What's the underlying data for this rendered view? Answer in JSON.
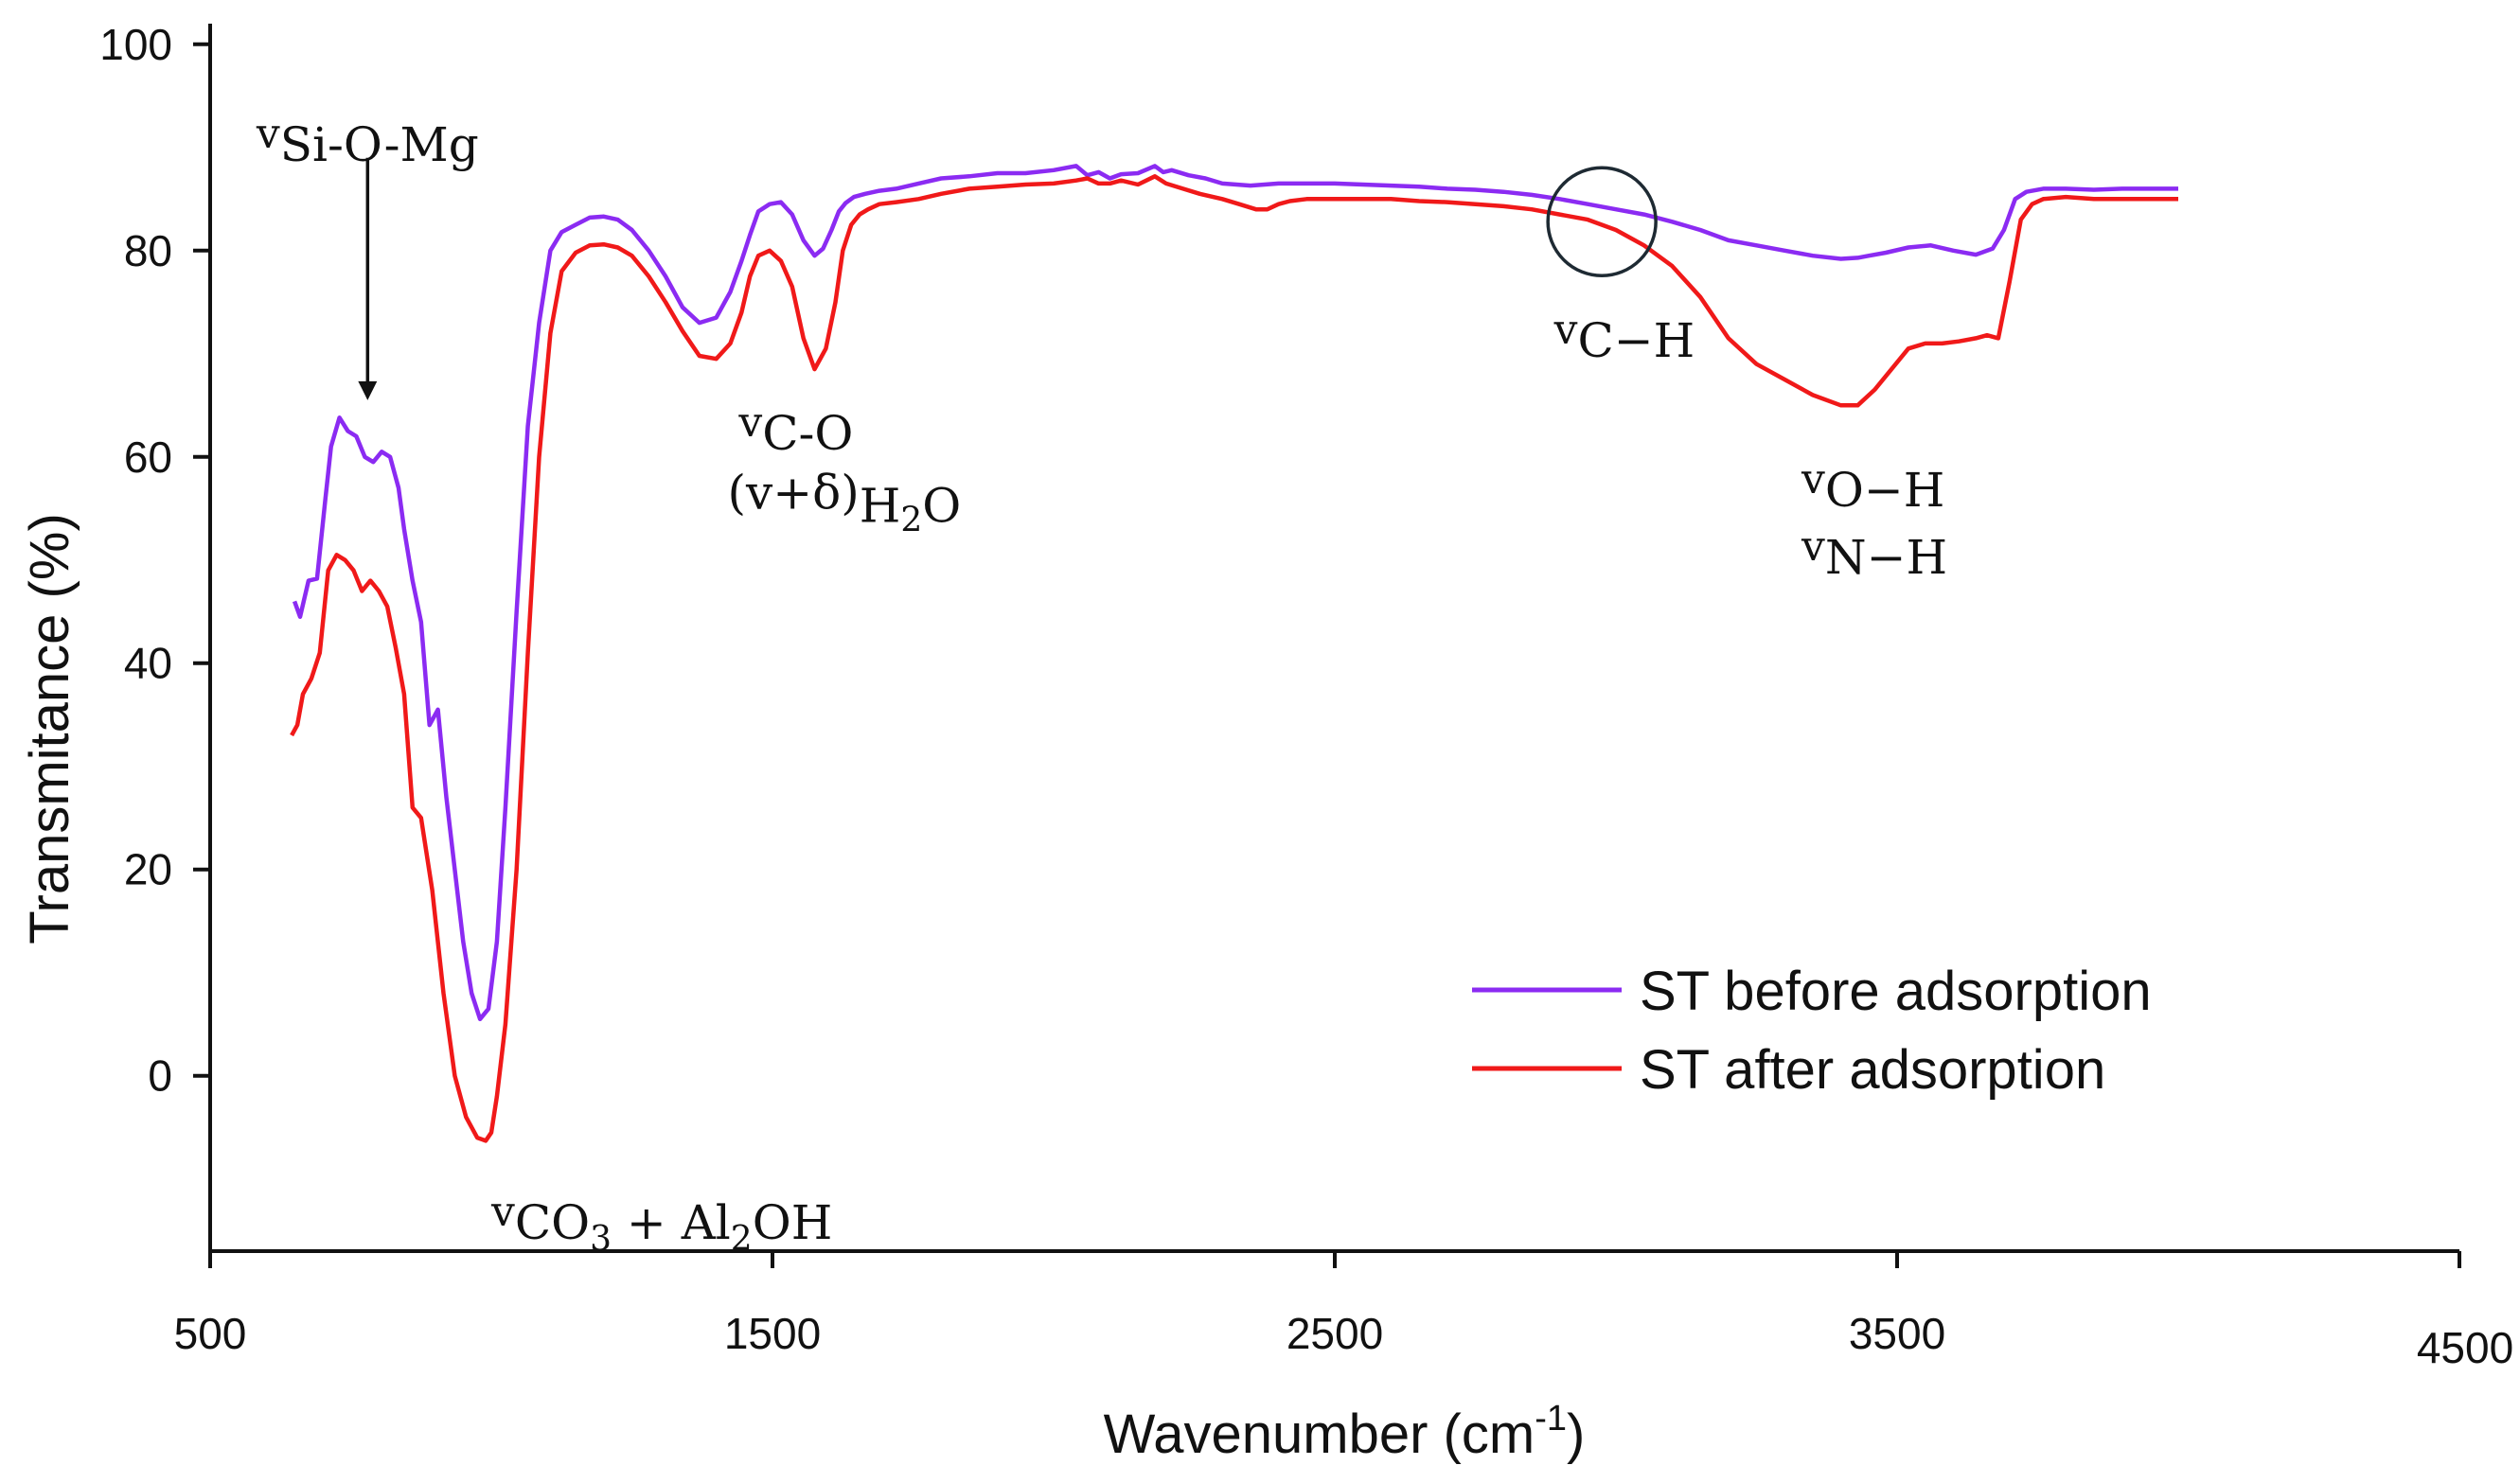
{
  "chart_data": {
    "type": "line",
    "xlabel": "Wavenumber (cm",
    "xlabel_sup": "-1",
    "xlabel_close": ")",
    "ylabel": "Transmitance (%)",
    "xlim": [
      500,
      4500
    ],
    "ylim": [
      -17,
      102
    ],
    "xticks": [
      "500",
      "1500",
      "2500",
      "3500",
      "4500"
    ],
    "xtick_values": [
      500,
      1500,
      2500,
      3500,
      4500
    ],
    "yticks": [
      "0",
      "20",
      "40",
      "60",
      "80",
      "100"
    ],
    "ytick_values": [
      0,
      20,
      40,
      60,
      80,
      100
    ],
    "legend_position": "lower-right",
    "series": [
      {
        "name": "ST before adsorption",
        "color": "#8b2bf2",
        "x": [
          650,
          660,
          675,
          690,
          705,
          715,
          730,
          745,
          760,
          775,
          790,
          805,
          820,
          835,
          845,
          860,
          875,
          890,
          905,
          920,
          935,
          950,
          965,
          980,
          995,
          1010,
          1025,
          1045,
          1065,
          1085,
          1105,
          1125,
          1150,
          1175,
          1200,
          1225,
          1250,
          1280,
          1310,
          1340,
          1370,
          1400,
          1425,
          1445,
          1460,
          1475,
          1495,
          1515,
          1535,
          1555,
          1575,
          1590,
          1605,
          1618,
          1630,
          1645,
          1665,
          1690,
          1720,
          1760,
          1800,
          1850,
          1900,
          1950,
          2000,
          2040,
          2060,
          2080,
          2100,
          2120,
          2150,
          2180,
          2195,
          2210,
          2240,
          2270,
          2300,
          2350,
          2400,
          2450,
          2500,
          2550,
          2600,
          2650,
          2700,
          2750,
          2800,
          2850,
          2900,
          2950,
          3000,
          3050,
          3100,
          3150,
          3200,
          3250,
          3300,
          3350,
          3400,
          3430,
          3450,
          3480,
          3520,
          3560,
          3600,
          3640,
          3670,
          3690,
          3710,
          3730,
          3760,
          3800,
          3850,
          3900,
          3950,
          4000
        ],
        "values": [
          46,
          44.5,
          48,
          48.2,
          56,
          61,
          63.8,
          62.5,
          62,
          60,
          59.5,
          60.5,
          60,
          57,
          53,
          48,
          44,
          34,
          35.5,
          27,
          20,
          13,
          8,
          5.5,
          6.5,
          13,
          26,
          45,
          63,
          73,
          80,
          81.8,
          82.5,
          83.2,
          83.3,
          83,
          82,
          80,
          77.5,
          74.5,
          73,
          73.5,
          76,
          79,
          81.5,
          83.8,
          84.5,
          84.7,
          83.5,
          81,
          79.5,
          80.2,
          82,
          83.8,
          84.6,
          85.2,
          85.5,
          85.8,
          86,
          86.5,
          87,
          87.2,
          87.5,
          87.5,
          87.8,
          88.2,
          87.3,
          87.6,
          87,
          87.4,
          87.5,
          88.2,
          87.6,
          87.8,
          87.3,
          87,
          86.5,
          86.3,
          86.5,
          86.5,
          86.5,
          86.4,
          86.3,
          86.2,
          86,
          85.9,
          85.7,
          85.4,
          85,
          84.5,
          84,
          83.5,
          82.8,
          82,
          81,
          80.5,
          80,
          79.5,
          79.2,
          79.3,
          79.5,
          79.8,
          80.3,
          80.5,
          80,
          79.6,
          80.2,
          82,
          85,
          85.7,
          86,
          86,
          85.9,
          86,
          86,
          86
        ]
      },
      {
        "name": "ST after adsorption",
        "color": "#f01919",
        "x": [
          645,
          655,
          665,
          680,
          695,
          710,
          725,
          740,
          755,
          770,
          785,
          800,
          815,
          830,
          845,
          860,
          875,
          895,
          915,
          935,
          955,
          975,
          990,
          1000,
          1010,
          1025,
          1045,
          1065,
          1085,
          1105,
          1125,
          1150,
          1175,
          1200,
          1225,
          1250,
          1280,
          1310,
          1340,
          1370,
          1400,
          1425,
          1445,
          1460,
          1475,
          1495,
          1515,
          1535,
          1555,
          1575,
          1595,
          1612,
          1625,
          1640,
          1655,
          1670,
          1690,
          1720,
          1760,
          1800,
          1850,
          1900,
          1950,
          2000,
          2040,
          2060,
          2080,
          2100,
          2120,
          2150,
          2180,
          2200,
          2230,
          2260,
          2300,
          2330,
          2360,
          2380,
          2400,
          2420,
          2450,
          2500,
          2550,
          2600,
          2650,
          2700,
          2750,
          2800,
          2850,
          2900,
          2950,
          3000,
          3050,
          3100,
          3150,
          3200,
          3250,
          3300,
          3350,
          3400,
          3430,
          3460,
          3490,
          3520,
          3550,
          3580,
          3610,
          3640,
          3660,
          3680,
          3700,
          3720,
          3740,
          3760,
          3800,
          3850,
          3900,
          3950,
          4000
        ],
        "values": [
          33,
          34,
          37,
          38.5,
          41,
          49,
          50.5,
          50,
          49,
          47,
          48,
          47,
          45.5,
          41.5,
          37,
          26,
          25,
          18,
          8,
          0,
          -4,
          -6,
          -6.3,
          -5.5,
          -2,
          5,
          20,
          41,
          60,
          72,
          78,
          79.8,
          80.5,
          80.6,
          80.3,
          79.5,
          77.5,
          75,
          72.2,
          69.8,
          69.5,
          71,
          74,
          77.5,
          79.5,
          80,
          79,
          76.5,
          71.5,
          68.5,
          70.5,
          75,
          80,
          82.5,
          83.5,
          84,
          84.5,
          84.7,
          85,
          85.5,
          86,
          86.2,
          86.4,
          86.5,
          86.8,
          87,
          86.5,
          86.5,
          86.8,
          86.4,
          87.2,
          86.5,
          86,
          85.5,
          85,
          84.5,
          84,
          84,
          84.5,
          84.8,
          85,
          85,
          85,
          85,
          84.8,
          84.7,
          84.5,
          84.3,
          84,
          83.5,
          83,
          82,
          80.5,
          78.5,
          75.5,
          71.5,
          69,
          67.5,
          66,
          65,
          65,
          66.5,
          68.5,
          70.5,
          71,
          71,
          71.2,
          71.5,
          71.8,
          71.5,
          77,
          83,
          84.5,
          85,
          85.2,
          85,
          85,
          85,
          85
        ]
      }
    ],
    "annotations": {
      "si_o_mg": {
        "lead": "v",
        "sub": "Si-O-Mg",
        "x": 780,
        "y": 90
      },
      "co3": {
        "lead": "v",
        "sub": "CO",
        "sub2": "3",
        "rest": " + Al",
        "rest_sub": "2",
        "rest2": "OH",
        "x": 1000,
        "y": -14.5
      },
      "c_o": {
        "lead": "v",
        "sub": "C-O",
        "x": 1440,
        "y": 62
      },
      "water": {
        "main": "(v+δ)",
        "sub": "H",
        "sub2": "2",
        "rest": "O",
        "x": 1420,
        "y": 55
      },
      "c_h": {
        "lead": "v",
        "sub": "C−H",
        "x": 2890,
        "y": 71
      },
      "o_h": {
        "lead": "v",
        "sub": "O−H",
        "x": 3330,
        "y": 56.5
      },
      "n_h": {
        "lead": "v",
        "sub": "N−H",
        "x": 3330,
        "y": 50
      },
      "arrow": {
        "x": 780,
        "y_from": 89,
        "y_to": 65.5
      },
      "circle": {
        "x": 2975,
        "y": 82.8
      }
    }
  }
}
